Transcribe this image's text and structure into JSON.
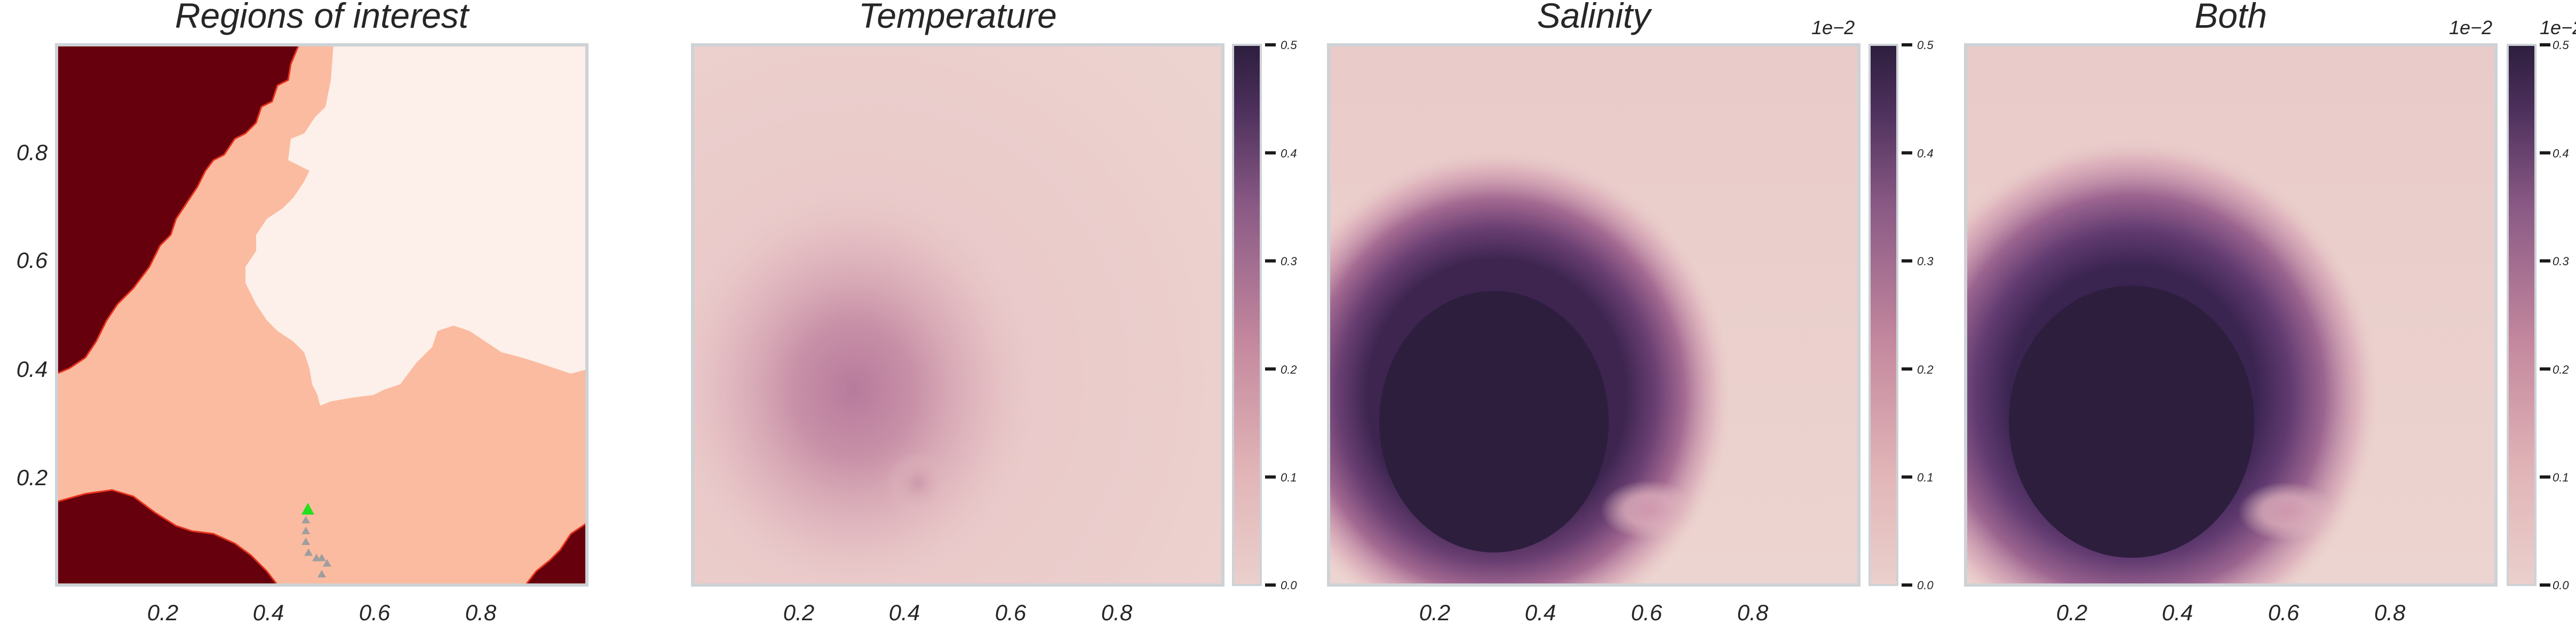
{
  "figure": {
    "panels": [
      {
        "id": "regions",
        "title": "Regions of interest"
      },
      {
        "id": "temperature",
        "title": "Temperature"
      },
      {
        "id": "salinity",
        "title": "Salinity"
      },
      {
        "id": "both",
        "title": "Both"
      }
    ],
    "colorbar": {
      "exponent_label": "1e−2",
      "ticks": [
        "0.0",
        "0.1",
        "0.2",
        "0.3",
        "0.4",
        "0.5"
      ],
      "low_color": "#ead0cc",
      "high_color": "#2d1e3e"
    },
    "x_tick_labels": [
      "0.2",
      "0.4",
      "0.6",
      "0.8"
    ],
    "y_tick_labels": [
      "0.2",
      "0.4",
      "0.6",
      "0.8"
    ],
    "region_colors": {
      "dark": "#67000d",
      "medium": "#fbbba0",
      "light": "#fdefe9",
      "boundary": "#e8311c"
    },
    "marker_colors": {
      "start": "#22e01c",
      "trail": "#9e9e9e"
    }
  },
  "chart_data": [
    {
      "type": "heatmap",
      "title": "Regions of interest",
      "xlim": [
        0,
        1
      ],
      "ylim": [
        0,
        1
      ],
      "x_ticks": [
        0.2,
        0.4,
        0.6,
        0.8
      ],
      "y_ticks": [
        0.2,
        0.4,
        0.6,
        0.8
      ],
      "regions": [
        {
          "class": "dark",
          "location": "top-left"
        },
        {
          "class": "dark",
          "location": "bottom-left"
        },
        {
          "class": "dark",
          "location": "bottom-right"
        },
        {
          "class": "light",
          "location": "upper-center and upper-right"
        },
        {
          "class": "medium",
          "location": "center band"
        }
      ],
      "trajectory": {
        "start": [
          0.47,
          0.14
        ],
        "points": [
          [
            0.47,
            0.12
          ],
          [
            0.47,
            0.1
          ],
          [
            0.47,
            0.08
          ],
          [
            0.475,
            0.06
          ],
          [
            0.49,
            0.05
          ],
          [
            0.5,
            0.05
          ],
          [
            0.51,
            0.04
          ],
          [
            0.5,
            0.02
          ]
        ]
      }
    },
    {
      "type": "heatmap",
      "title": "Temperature",
      "xlim": [
        0,
        1
      ],
      "ylim": [
        0,
        1
      ],
      "x_ticks": [
        0.2,
        0.4,
        0.6,
        0.8
      ],
      "colorbar_range": [
        0.0,
        0.5
      ],
      "colorbar_scale": "1e-2",
      "features": [
        {
          "kind": "peak",
          "center": [
            0.3,
            0.35
          ],
          "level": 0.27
        },
        {
          "kind": "peak",
          "center": [
            0.42,
            0.19
          ],
          "level": 0.2
        }
      ]
    },
    {
      "type": "heatmap",
      "title": "Salinity",
      "xlim": [
        0,
        1
      ],
      "ylim": [
        0,
        1
      ],
      "x_ticks": [
        0.2,
        0.4,
        0.6,
        0.8
      ],
      "colorbar_range": [
        0.0,
        0.5
      ],
      "colorbar_scale": "1e-2",
      "features": [
        {
          "kind": "saturated blob",
          "center": [
            0.3,
            0.3
          ],
          "level": 0.5
        },
        {
          "kind": "peak",
          "center": [
            0.6,
            0.14
          ],
          "level": 0.15
        }
      ]
    },
    {
      "type": "heatmap",
      "title": "Both",
      "xlim": [
        0,
        1
      ],
      "ylim": [
        0,
        1
      ],
      "x_ticks": [
        0.2,
        0.4,
        0.6,
        0.8
      ],
      "colorbar_range": [
        0.0,
        0.5
      ],
      "colorbar_scale": "1e-2",
      "features": [
        {
          "kind": "saturated blob",
          "center": [
            0.3,
            0.3
          ],
          "level": 0.5
        },
        {
          "kind": "peak",
          "center": [
            0.6,
            0.14
          ],
          "level": 0.15
        }
      ]
    }
  ]
}
